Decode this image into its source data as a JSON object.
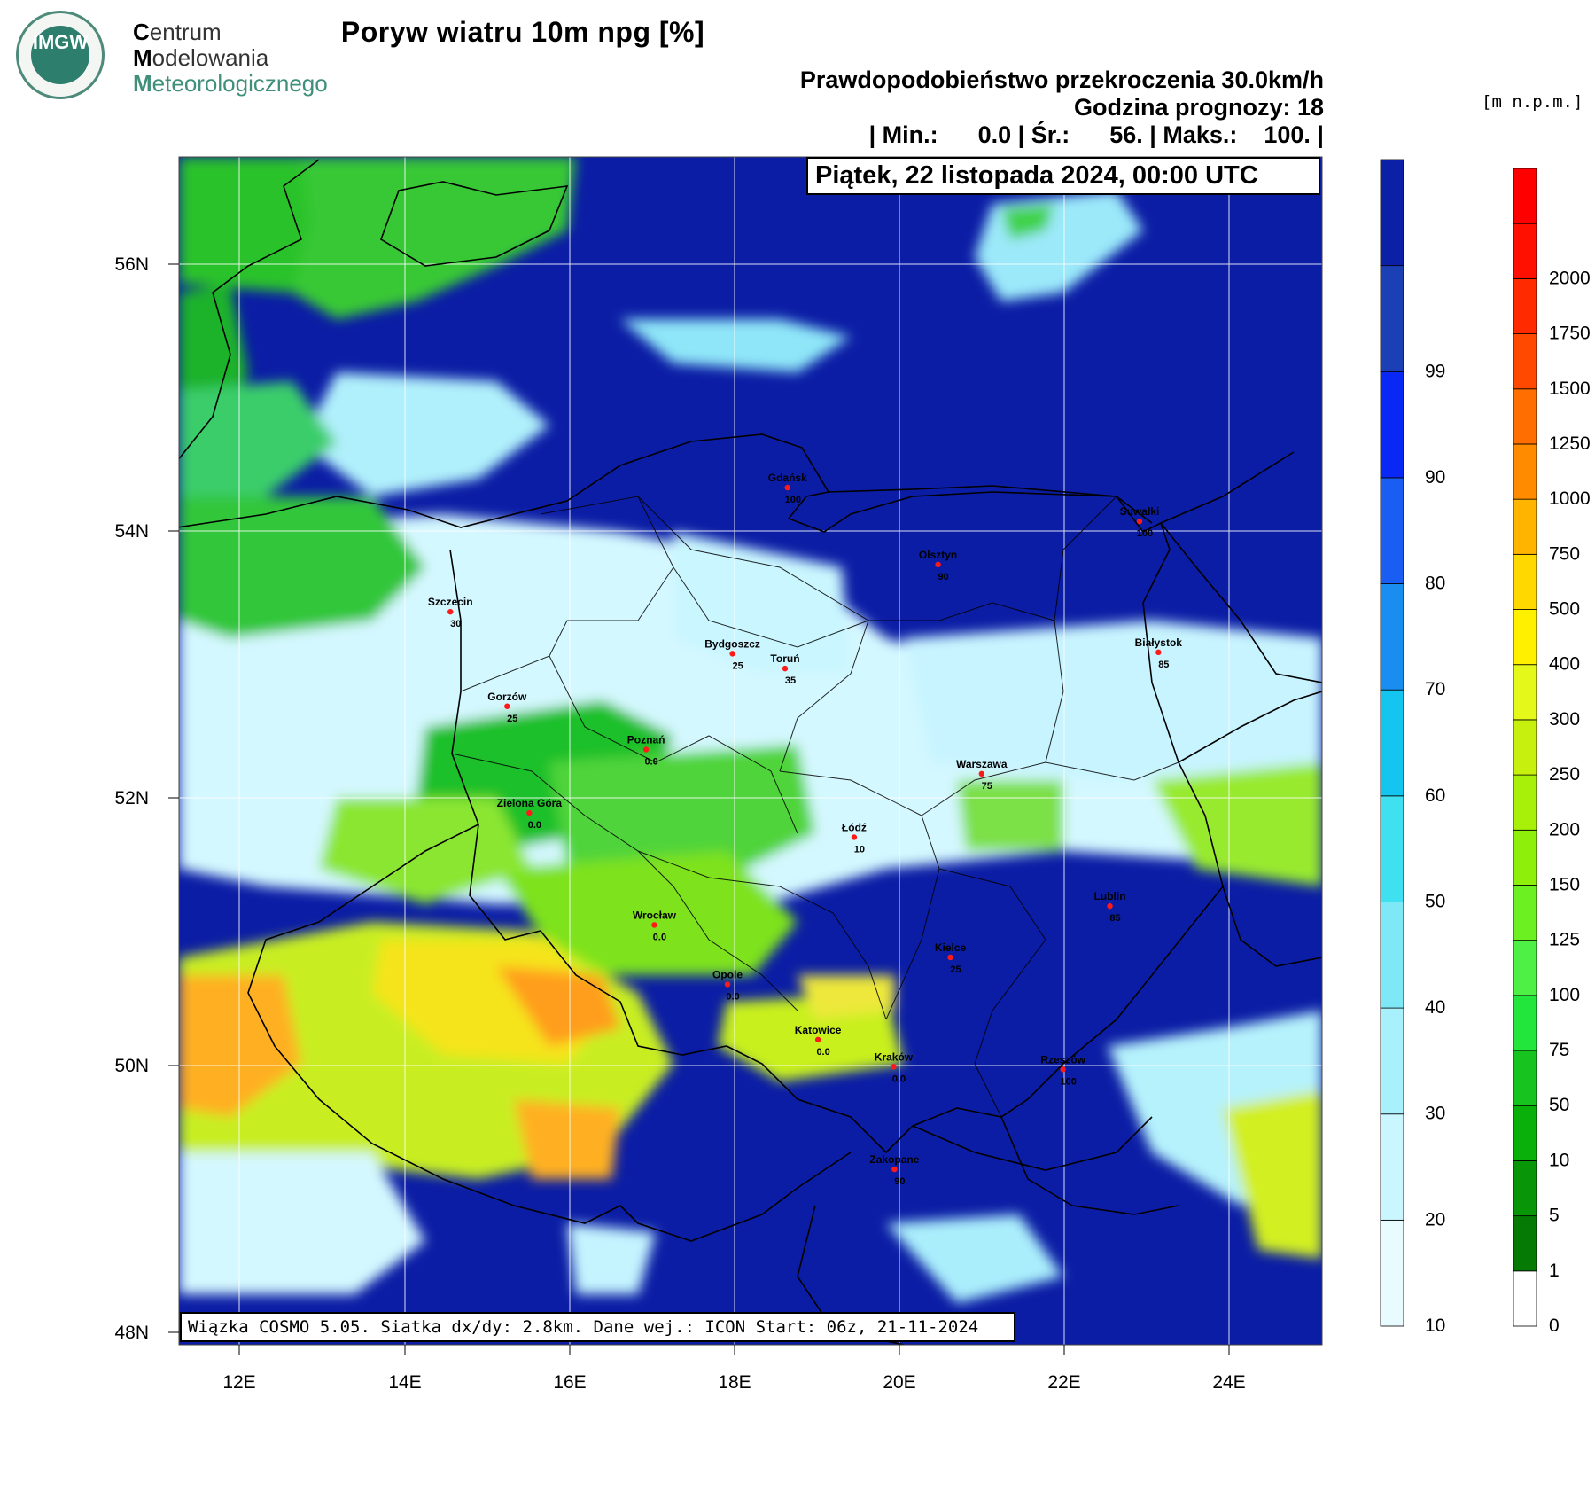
{
  "logo": {
    "emblem_text": "IMGW",
    "line1_initial": "C",
    "line1_rest": "entrum",
    "line2_initial": "M",
    "line2_rest": "odelowania",
    "line3_initial": "M",
    "line3_rest": "eteorologicznego"
  },
  "title": "Poryw wiatru 10m npg [%]",
  "subtitle": "Prawdopodobieństwo przekroczenia 30.0km/h",
  "forecast_hour": "Godzina prognozy: 18",
  "stats_line": "| Min.:      0.0 | Śr.:      56. | Maks.:    100. |",
  "stats": {
    "min": 0.0,
    "mean": 56,
    "max": 100
  },
  "date": "Piątek, 22 listopada 2024, 00:00 UTC",
  "footer": "Wiązka COSMO 5.05. Siatka dx/dy: 2.8km. Dane wej.: ICON Start: 06z, 21-11-2024",
  "units_label": "[m n.p.m.]",
  "map": {
    "lon_labels": [
      "12E",
      "14E",
      "16E",
      "18E",
      "20E",
      "22E",
      "24E"
    ],
    "lat_labels": [
      "56N",
      "54N",
      "52N",
      "50N",
      "48N"
    ],
    "lon_range": [
      11.25,
      25.15
    ],
    "lat_range": [
      48.0,
      56.8
    ]
  },
  "cities": [
    {
      "name": "Gdańsk",
      "value": "100",
      "lon": 18.65,
      "lat": 54.35
    },
    {
      "name": "Suwałki",
      "value": "100",
      "lon": 22.93,
      "lat": 54.1
    },
    {
      "name": "Olsztyn",
      "value": "90",
      "lon": 20.48,
      "lat": 53.78
    },
    {
      "name": "Szczecin",
      "value": "30",
      "lon": 14.55,
      "lat": 53.43
    },
    {
      "name": "Bydgoszcz",
      "value": "25",
      "lon": 17.98,
      "lat": 53.12
    },
    {
      "name": "Toruń",
      "value": "35",
      "lon": 18.62,
      "lat": 53.01
    },
    {
      "name": "Białystok",
      "value": "85",
      "lon": 23.16,
      "lat": 53.13
    },
    {
      "name": "Gorzów",
      "value": "25",
      "lon": 15.24,
      "lat": 52.73
    },
    {
      "name": "Poznań",
      "value": "0.0",
      "lon": 16.93,
      "lat": 52.41
    },
    {
      "name": "Warszawa",
      "value": "75",
      "lon": 21.01,
      "lat": 52.23
    },
    {
      "name": "Zielona Góra",
      "value": "0.0",
      "lon": 15.51,
      "lat": 51.94
    },
    {
      "name": "Łódź",
      "value": "10",
      "lon": 19.46,
      "lat": 51.76
    },
    {
      "name": "Lublin",
      "value": "85",
      "lon": 22.57,
      "lat": 51.25
    },
    {
      "name": "Wrocław",
      "value": "0.0",
      "lon": 17.03,
      "lat": 51.11
    },
    {
      "name": "Kielce",
      "value": "25",
      "lon": 20.63,
      "lat": 50.87
    },
    {
      "name": "Opole",
      "value": "0.0",
      "lon": 17.92,
      "lat": 50.67
    },
    {
      "name": "Katowice",
      "value": "0.0",
      "lon": 19.02,
      "lat": 50.26
    },
    {
      "name": "Kraków",
      "value": "0.0",
      "lon": 19.94,
      "lat": 50.06
    },
    {
      "name": "Rzeszów",
      "value": "100",
      "lon": 22.0,
      "lat": 50.04
    },
    {
      "name": "Zakopane",
      "value": "90",
      "lon": 19.95,
      "lat": 49.3
    }
  ],
  "probability_colorbar": {
    "labels": [
      "10",
      "20",
      "30",
      "40",
      "50",
      "60",
      "70",
      "80",
      "90",
      "99"
    ],
    "colors": [
      "#e8fcff",
      "#c9f6ff",
      "#a8f0fc",
      "#7fe8f6",
      "#3fe0f0",
      "#14c6ef",
      "#1a8ef0",
      "#1a5df2",
      "#0a28f5",
      "#1b3fb5",
      "#0b20a6"
    ]
  },
  "elevation_colorbar": {
    "labels": [
      "0",
      "1",
      "5",
      "10",
      "50",
      "75",
      "100",
      "125",
      "150",
      "200",
      "250",
      "300",
      "400",
      "500",
      "750",
      "1000",
      "1250",
      "1500",
      "1750",
      "2000"
    ],
    "colors": [
      "#ffffff",
      "#057a05",
      "#089608",
      "#0ab00a",
      "#17c41f",
      "#22e63c",
      "#4ef046",
      "#6cf022",
      "#8ef00a",
      "#a8f00a",
      "#c8f00f",
      "#e4f81a",
      "#fff000",
      "#ffd800",
      "#ffb400",
      "#ff8c00",
      "#ff6e00",
      "#ff4800",
      "#ff2a00",
      "#ff1000",
      "#ff0000"
    ]
  },
  "colors": {
    "sea": "#0b1da5",
    "forest_green": "#17b21a",
    "pale_cyan": "#d4f8ff",
    "yellow_green": "#c8f01e",
    "orange": "#ffb01a"
  }
}
